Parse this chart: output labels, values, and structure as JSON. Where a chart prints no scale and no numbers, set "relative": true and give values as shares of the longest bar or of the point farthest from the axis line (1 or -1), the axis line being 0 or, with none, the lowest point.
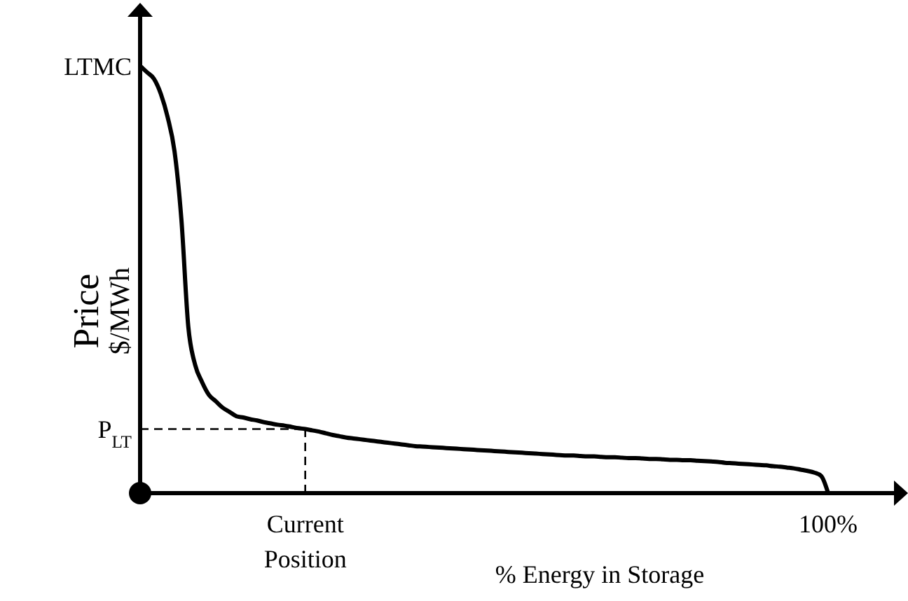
{
  "chart_data": {
    "type": "line",
    "relative": true,
    "xlabel": "% Energy in Storage",
    "ylabel": "Price\n$/MWh",
    "categories": [
      null,
      null,
      null,
      null,
      null,
      null,
      null,
      null,
      null,
      null,
      null,
      null,
      null,
      null,
      null,
      null,
      null,
      null,
      null,
      null,
      null,
      null,
      null,
      null,
      "Current\nPosition",
      null,
      null,
      null,
      null,
      null,
      null,
      null,
      null,
      null,
      null,
      null,
      null,
      null,
      null,
      null,
      null,
      null,
      null,
      null,
      null,
      null,
      null,
      null,
      null,
      null,
      null,
      null,
      null,
      null,
      null,
      null,
      null,
      null,
      null,
      null,
      null,
      null,
      null,
      null,
      null,
      null,
      null,
      null,
      null,
      null,
      null,
      null,
      null,
      null,
      null,
      null,
      null,
      null,
      null,
      null,
      null,
      null,
      null,
      null,
      null,
      null,
      null,
      null,
      null,
      null,
      null,
      null,
      null,
      null,
      null,
      null,
      null,
      null,
      null,
      null,
      "100%"
    ],
    "series": [
      {
        "color": "#000000",
        "values": [
          1.0,
          0.985,
          0.97,
          0.935,
          0.88,
          0.8,
          0.64,
          0.39,
          0.3,
          0.26,
          0.23,
          0.215,
          0.2,
          0.19,
          0.18,
          0.177,
          0.173,
          0.17,
          0.166,
          0.163,
          0.16,
          0.158,
          0.155,
          0.152,
          0.15,
          0.147,
          0.144,
          0.14,
          0.136,
          0.133,
          0.13,
          0.128,
          0.126,
          0.124,
          0.122,
          0.12,
          0.118,
          0.116,
          0.114,
          0.112,
          0.11,
          0.109,
          0.108,
          0.107,
          0.106,
          0.105,
          0.104,
          0.103,
          0.102,
          0.101,
          0.1,
          0.099,
          0.098,
          0.097,
          0.096,
          0.095,
          0.094,
          0.093,
          0.092,
          0.091,
          0.09,
          0.089,
          0.088,
          0.088,
          0.087,
          0.086,
          0.086,
          0.085,
          0.084,
          0.084,
          0.083,
          0.082,
          0.082,
          0.081,
          0.08,
          0.08,
          0.079,
          0.078,
          0.078,
          0.077,
          0.077,
          0.076,
          0.075,
          0.074,
          0.073,
          0.071,
          0.07,
          0.069,
          0.068,
          0.067,
          0.066,
          0.065,
          0.063,
          0.062,
          0.06,
          0.058,
          0.055,
          0.052,
          0.048,
          0.04,
          0
        ]
      }
    ],
    "annotations": [
      "LTMC",
      "P$_{LT}$"
    ],
    "ref_lines": [
      {
        "axis": "x",
        "value": "Current\nPosition",
        "line_style": "dashed"
      },
      {
        "axis": "y",
        "value": 0.15,
        "line_style": "dashed"
      }
    ],
    "grid": false,
    "marker": "none",
    "line_style": "solid"
  }
}
